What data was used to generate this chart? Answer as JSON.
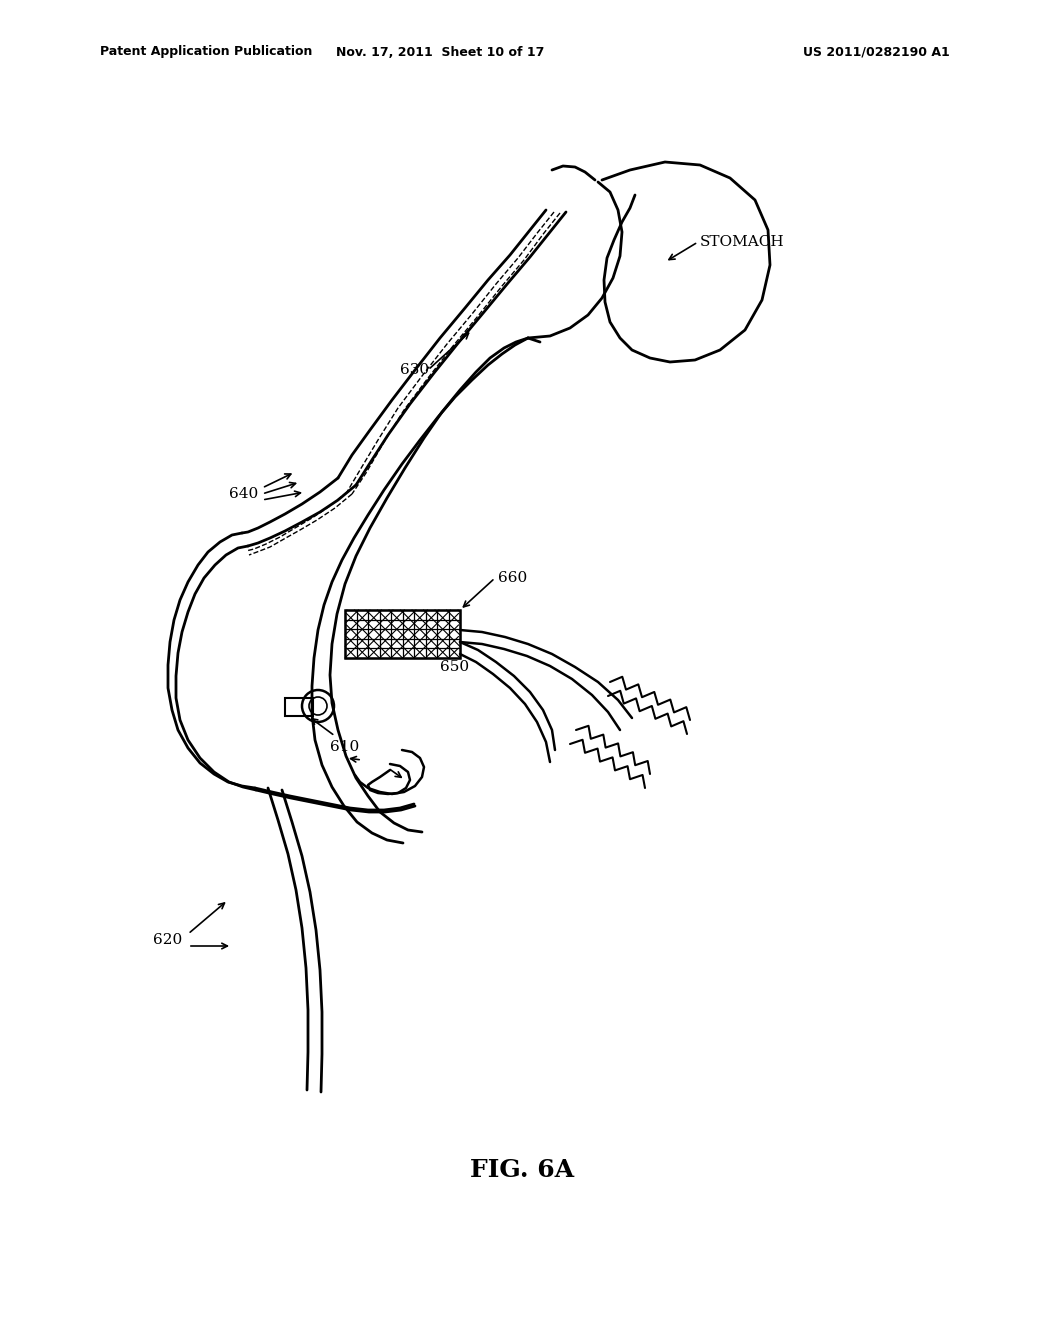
{
  "header_left": "Patent Application Publication",
  "header_center": "Nov. 17, 2011  Sheet 10 of 17",
  "header_right": "US 2011/0282190 A1",
  "fig_label": "FIG. 6A",
  "bg_color": "#ffffff",
  "line_color": "#000000"
}
